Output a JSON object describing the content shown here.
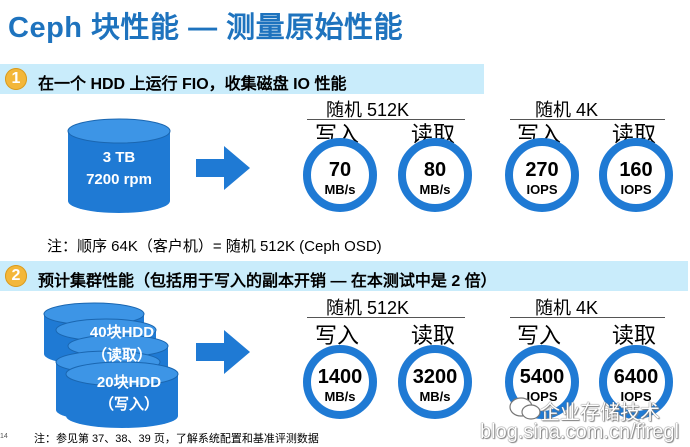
{
  "title": "Ceph 块性能 — 测量原始性能",
  "step1": {
    "number": "1",
    "text": "在一个 HDD 上运行 FIO，收集磁盘 IO 性能",
    "disk_capacity": "3 TB",
    "disk_rpm": "7200 rpm",
    "seq_group": "随机 512K",
    "rand_group": "随机 4K",
    "write_label": "写入",
    "read_label": "读取",
    "metrics": [
      {
        "value": "70",
        "unit": "MB/s"
      },
      {
        "value": "80",
        "unit": "MB/s"
      },
      {
        "value": "270",
        "unit": "IOPS"
      },
      {
        "value": "160",
        "unit": "IOPS"
      }
    ],
    "note": "注：顺序 64K（客户机）= 随机 512K (Ceph OSD)"
  },
  "step2": {
    "number": "2",
    "text": "预计集群性能（包括用于写入的副本开销 — 在本测试中是 2 倍）",
    "stack_read_line1": "40块HDD",
    "stack_read_line2": "（读取）",
    "stack_write_line1": "20块HDD",
    "stack_write_line2": "（写入）",
    "seq_group": "随机 512K",
    "rand_group": "随机 4K",
    "write_label": "写入",
    "read_label": "读取",
    "metrics": [
      {
        "value": "1400",
        "unit": "MB/s"
      },
      {
        "value": "3200",
        "unit": "MB/s"
      },
      {
        "value": "5400",
        "unit": "IOPS"
      },
      {
        "value": "6400",
        "unit": "IOPS"
      }
    ]
  },
  "footnote": "注：参见第 37、38、39 页，了解系统配置和基准评测数据",
  "page_number": "14",
  "watermark_line1": "企业存储技术",
  "watermark_line2": "blog.sina.com.cn/firegl",
  "colors": {
    "title": "#1e73be",
    "step_bar": "#c9ecfb",
    "step_badge": "#f3b73a",
    "circle_ring": "#1f7ad4",
    "disk": "#1f7ad4"
  }
}
